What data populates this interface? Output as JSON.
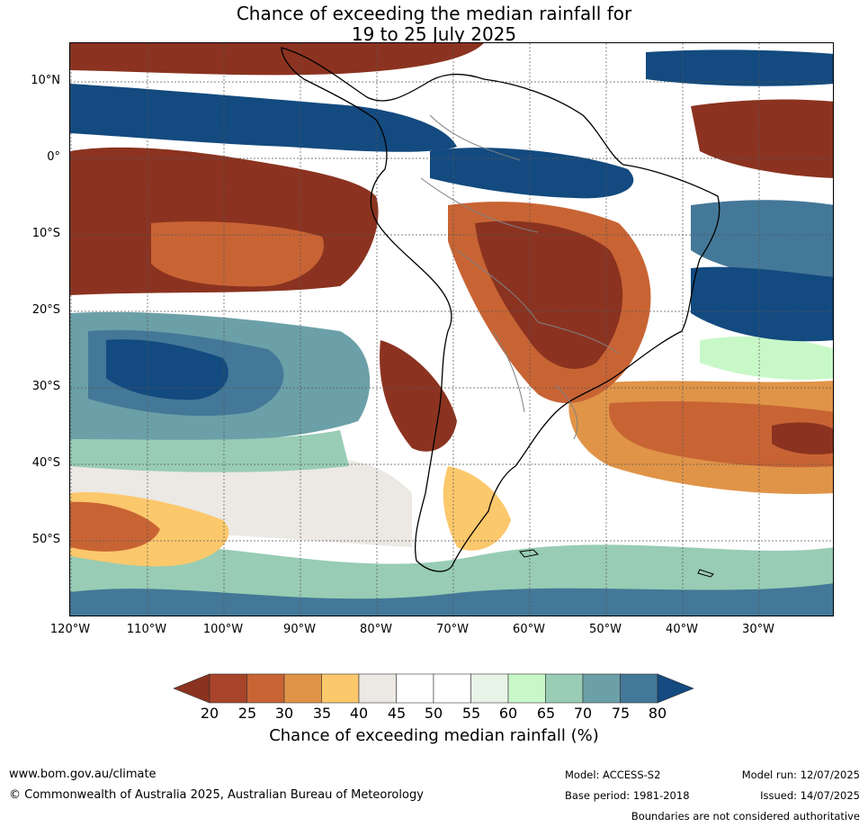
{
  "title": {
    "line1": "Chance of exceeding the median rainfall for",
    "line2": "19 to 25 July 2025"
  },
  "map": {
    "projection": "equirectangular",
    "lon_range": [
      "120°W",
      "20°W"
    ],
    "lat_range": [
      "15°N",
      "60°S"
    ],
    "gridlines": "dotted",
    "lat_labels": [
      "10°N",
      "0°",
      "10°S",
      "20°S",
      "30°S",
      "40°S",
      "50°S"
    ],
    "lon_labels": [
      "120°W",
      "110°W",
      "100°W",
      "90°W",
      "80°W",
      "70°W",
      "60°W",
      "50°W",
      "40°W",
      "30°W"
    ]
  },
  "legend": {
    "caption": "Chance of exceeding median rainfall (%)",
    "ticks": [
      "20",
      "25",
      "30",
      "35",
      "40",
      "45",
      "50",
      "55",
      "60",
      "65",
      "70",
      "75",
      "80"
    ],
    "colors": {
      "below_20": "#8b3320",
      "20_25": "#a8442a",
      "25_30": "#c86434",
      "30_35": "#e09448",
      "35_40": "#fcc86c",
      "40_45": "#ece8e4",
      "45_50": "#ffffff",
      "50_55": "#ffffff",
      "55_60": "#e8f4e8",
      "60_65": "#c8f8c8",
      "65_70": "#98ccb4",
      "70_75": "#6ca0a8",
      "75_80": "#447898",
      "above_80": "#134a7f"
    }
  },
  "footer": {
    "website": "www.bom.gov.au/climate",
    "copyright": "© Commonwealth of Australia 2025, Australian Bureau of Meteorology",
    "model": "Model: ACCESS-S2",
    "base_period": "Base period: 1981-2018",
    "model_run": "Model run: 12/07/2025",
    "issued": "Issued: 14/07/2025",
    "disclaimer": "Boundaries are not considered authoritative"
  }
}
